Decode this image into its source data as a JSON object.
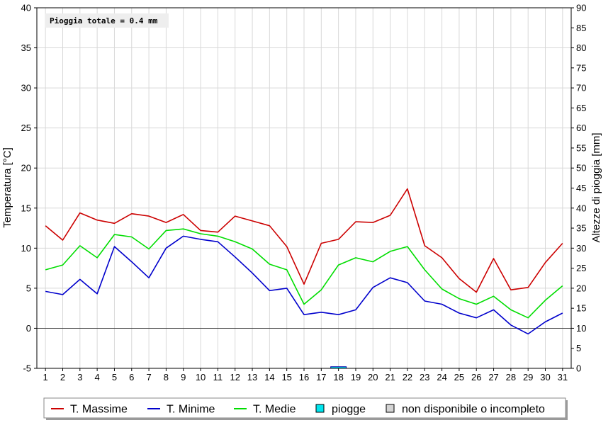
{
  "chart_data": {
    "type": "line",
    "annotation": "Pioggia totale = 0.4 mm",
    "ylabel_left": "Temperatura [°C]",
    "ylabel_right": "Altezze di pioggia [mm]",
    "x": [
      1,
      2,
      3,
      4,
      5,
      6,
      7,
      8,
      9,
      10,
      11,
      12,
      13,
      14,
      15,
      16,
      17,
      18,
      19,
      20,
      21,
      22,
      23,
      24,
      25,
      26,
      27,
      28,
      29,
      30,
      31
    ],
    "y_left_range": [
      -5,
      40
    ],
    "y_left_ticks": [
      -5,
      0,
      5,
      10,
      15,
      20,
      25,
      30,
      35,
      40
    ],
    "y_right_range": [
      0,
      90
    ],
    "y_right_ticks": [
      0,
      5,
      10,
      15,
      20,
      25,
      30,
      35,
      40,
      45,
      50,
      55,
      60,
      65,
      70,
      75,
      80,
      85,
      90
    ],
    "grid": true,
    "series": [
      {
        "name": "T. Massime",
        "color": "#cc0000",
        "values": [
          12.8,
          11.0,
          14.4,
          13.5,
          13.1,
          14.3,
          14.0,
          13.2,
          14.2,
          12.2,
          12.0,
          14.0,
          13.4,
          12.8,
          10.2,
          5.5,
          10.6,
          11.1,
          13.3,
          13.2,
          14.1,
          17.4,
          10.3,
          8.8,
          6.2,
          4.5,
          8.7,
          4.8,
          5.1,
          8.2,
          10.6
        ]
      },
      {
        "name": "T. Minime",
        "color": "#0000cc",
        "values": [
          4.6,
          4.2,
          6.1,
          4.3,
          10.2,
          8.3,
          6.3,
          10.0,
          11.5,
          11.1,
          10.8,
          8.9,
          6.9,
          4.7,
          5.0,
          1.7,
          2.0,
          1.7,
          2.3,
          5.1,
          6.3,
          5.7,
          3.4,
          3.0,
          1.9,
          1.3,
          2.3,
          0.4,
          -0.7,
          0.8,
          1.9
        ]
      },
      {
        "name": "T. Medie",
        "color": "#00dd00",
        "values": [
          7.3,
          7.9,
          10.3,
          8.8,
          11.7,
          11.4,
          9.9,
          12.2,
          12.4,
          11.8,
          11.5,
          10.8,
          9.9,
          8.0,
          7.3,
          3.0,
          4.8,
          7.9,
          8.8,
          8.3,
          9.6,
          10.2,
          7.3,
          4.9,
          3.7,
          3.0,
          4.0,
          2.3,
          1.3,
          3.5,
          5.3
        ]
      }
    ],
    "rain": {
      "name": "piogge",
      "color": "#00e5ee",
      "values": [
        0,
        0,
        0,
        0,
        0,
        0,
        0,
        0,
        0,
        0,
        0,
        0,
        0,
        0,
        0,
        0,
        0,
        0.4,
        0,
        0,
        0,
        0,
        0,
        0,
        0,
        0,
        0,
        0,
        0,
        0,
        0
      ]
    },
    "legend": {
      "placement": "bottom",
      "items": [
        {
          "label": "T. Massime",
          "kind": "line",
          "color": "#cc0000"
        },
        {
          "label": "T. Minime",
          "kind": "line",
          "color": "#0000cc"
        },
        {
          "label": "T. Medie",
          "kind": "line",
          "color": "#00dd00"
        },
        {
          "label": "piogge",
          "kind": "box",
          "color": "#00e5ee"
        },
        {
          "label": "non disponibile o incompleto",
          "kind": "box",
          "color": "#d4d4d4"
        }
      ]
    }
  }
}
